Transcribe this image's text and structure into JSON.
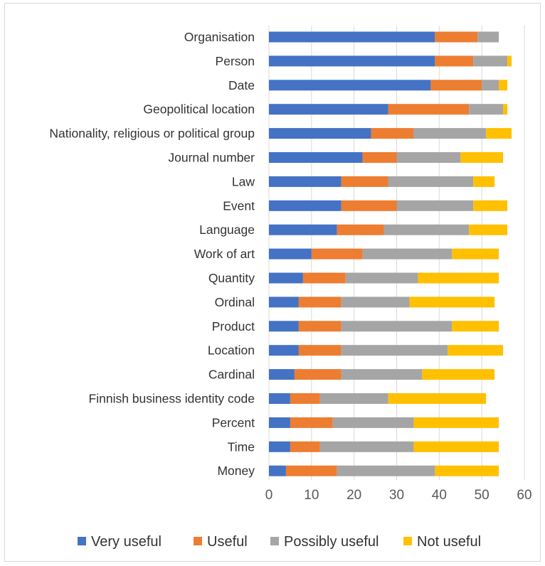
{
  "chart_data": {
    "type": "bar",
    "orientation": "horizontal",
    "stacked": true,
    "categories": [
      "Organisation",
      "Person",
      "Date",
      "Geopolitical location",
      "Nationality, religious or political group",
      "Journal number",
      "Law",
      "Event",
      "Language",
      "Work of art",
      "Quantity",
      "Ordinal",
      "Product",
      "Location",
      "Cardinal",
      "Finnish business identity code",
      "Percent",
      "Time",
      "Money"
    ],
    "series": [
      {
        "name": "Very useful",
        "color": "#4472c4",
        "values": [
          39,
          39,
          38,
          28,
          24,
          22,
          17,
          17,
          16,
          10,
          8,
          7,
          7,
          7,
          6,
          5,
          5,
          5,
          4
        ]
      },
      {
        "name": "Useful",
        "color": "#ed7d31",
        "values": [
          10,
          9,
          12,
          19,
          10,
          8,
          11,
          13,
          11,
          12,
          10,
          10,
          10,
          10,
          11,
          7,
          10,
          7,
          12
        ]
      },
      {
        "name": "Possibly useful",
        "color": "#a5a5a5",
        "values": [
          5,
          8,
          4,
          8,
          17,
          15,
          20,
          18,
          20,
          21,
          17,
          16,
          26,
          25,
          19,
          16,
          19,
          22,
          23
        ]
      },
      {
        "name": "Not useful",
        "color": "#ffc000",
        "values": [
          0,
          1,
          2,
          1,
          6,
          10,
          5,
          8,
          9,
          11,
          19,
          20,
          11,
          13,
          17,
          23,
          20,
          20,
          15
        ]
      }
    ],
    "xlim": [
      0,
      60
    ],
    "xticks": [
      "0",
      "10",
      "20",
      "30",
      "40",
      "50",
      "60"
    ],
    "grid": true,
    "legend_position": "bottom",
    "title": "",
    "xlabel": "",
    "ylabel": ""
  }
}
